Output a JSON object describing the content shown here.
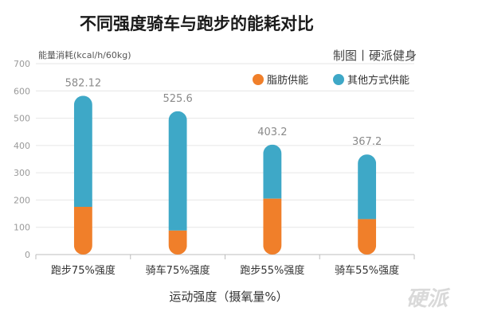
{
  "chart_data": {
    "type": "bar",
    "stacked": true,
    "title": "不同强度骑车与跑步的能耗对比",
    "credit": "制图丨硬派健身",
    "ylabel": "能量消耗(kcal/h/60kg)",
    "xlabel": "运动强度（摄氧量%）",
    "categories": [
      "跑步75%强度",
      "骑车75%强度",
      "跑步55%强度",
      "骑车55%强度"
    ],
    "series": [
      {
        "name": "脂肪供能",
        "color": "#f07f2a",
        "values": [
          175,
          88,
          205,
          130
        ]
      },
      {
        "name": "其他方式供能",
        "color": "#3ea8c7",
        "values": [
          407.12,
          437.6,
          198.2,
          237.2
        ]
      }
    ],
    "totals": [
      "582.12",
      "525.6",
      "403.2",
      "367.2"
    ],
    "yticks": [
      0,
      100,
      200,
      300,
      400,
      500,
      600,
      700
    ],
    "ylim": [
      0,
      700
    ],
    "grid": true,
    "legend_position": "top-right",
    "watermark": "硬派"
  }
}
